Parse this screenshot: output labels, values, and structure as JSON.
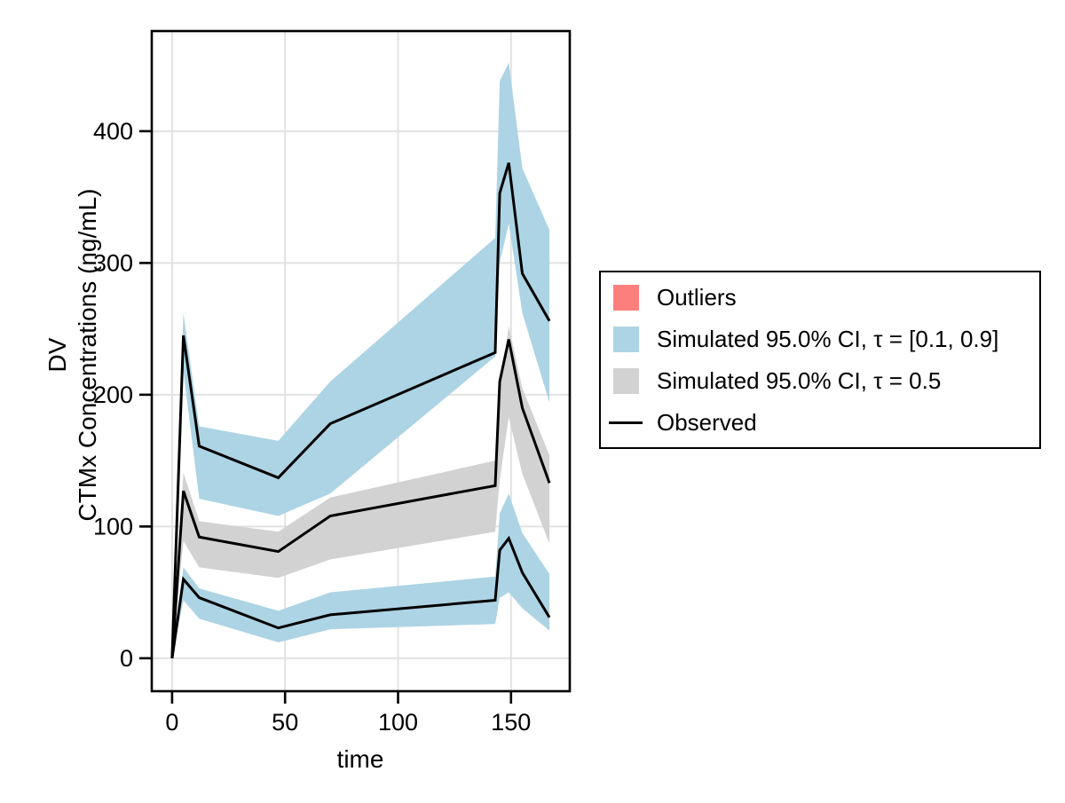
{
  "chart_data": {
    "type": "line",
    "title": "",
    "xlabel": "time",
    "ylabel_line1": "DV",
    "ylabel_line2": "CTMx Concentrations (ng/mL)",
    "xlim": [
      -9,
      176
    ],
    "ylim": [
      -25,
      476
    ],
    "xticks": [
      0,
      50,
      100,
      150
    ],
    "yticks": [
      0,
      100,
      200,
      300,
      400
    ],
    "grid": true,
    "legend_position": "right-outside",
    "colors": {
      "band_blue": "#ADD4E4",
      "band_gray": "#D2D2D2",
      "outliers_red": "#FC7E7D",
      "observed_line": "#000000",
      "gridline": "#E2E2E2",
      "axis": "#000000"
    },
    "times": [
      0,
      5,
      12,
      47,
      70,
      143,
      145,
      149,
      155,
      167
    ],
    "series": [
      {
        "name": "Observed 90th percentile",
        "color": "#000000",
        "values": [
          0,
          245,
          161,
          137,
          178,
          232,
          353,
          376,
          292,
          256
        ]
      },
      {
        "name": "Observed median",
        "color": "#000000",
        "values": [
          0,
          127,
          92,
          81,
          108,
          131,
          210,
          242,
          190,
          133
        ]
      },
      {
        "name": "Observed 10th percentile",
        "color": "#000000",
        "values": [
          0,
          60,
          46,
          23,
          33,
          44,
          82,
          91,
          65,
          31
        ]
      }
    ],
    "bands": [
      {
        "name": "Simulated 95.0% CI, tau = [0.1, 0.9] - upper band",
        "color": "#ADD4E4",
        "upper": [
          6,
          262,
          176,
          165,
          210,
          319,
          438,
          452,
          372,
          325
        ],
        "lower": [
          0,
          218,
          121,
          108,
          125,
          229,
          300,
          330,
          262,
          194
        ]
      },
      {
        "name": "Simulated 95.0% CI, tau = 0.5 - median band",
        "color": "#D2D2D2",
        "upper": [
          4,
          141,
          104,
          96,
          122,
          150,
          205,
          252,
          205,
          154
        ],
        "lower": [
          0,
          89,
          69,
          61,
          75,
          96,
          135,
          183,
          140,
          87
        ]
      },
      {
        "name": "Simulated 95.0% CI, tau = [0.1, 0.9] - lower band",
        "color": "#ADD4E4",
        "upper": [
          3,
          69,
          53,
          36,
          50,
          62,
          110,
          125,
          95,
          64
        ],
        "lower": [
          0,
          44,
          30,
          12,
          22,
          26,
          46,
          50,
          38,
          21
        ]
      }
    ],
    "legend": {
      "items": [
        {
          "label": "Outliers",
          "swatch": "rect",
          "color": "#FC7E7D"
        },
        {
          "label": "Simulated 95.0% CI, τ = [0.1, 0.9]",
          "swatch": "rect",
          "color": "#ADD4E4"
        },
        {
          "label": "Simulated 95.0% CI, τ = 0.5",
          "swatch": "rect",
          "color": "#D2D2D2"
        },
        {
          "label": "Observed",
          "swatch": "line",
          "color": "#000000"
        }
      ]
    }
  }
}
